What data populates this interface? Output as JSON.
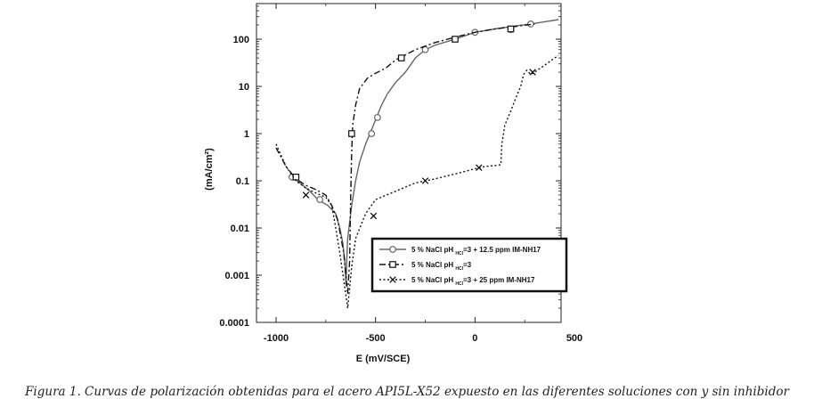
{
  "chart_data": {
    "type": "line",
    "title": "",
    "xlabel": "E (mV/SCE)",
    "ylabel": "(mA/cm²)",
    "y_scale": "log",
    "xlim": [
      -1100,
      500
    ],
    "ylim": [
      0.0001,
      700
    ],
    "x_ticks": [
      -1000,
      -500,
      0,
      500
    ],
    "x_tick_labels": [
      "-1000",
      "-500",
      "0",
      "500"
    ],
    "y_ticks": [
      100,
      10,
      1,
      0.1,
      0.01,
      0.001,
      0.0001
    ],
    "y_tick_labels": [
      "100",
      "10",
      "1",
      "0.1",
      "0.01",
      "0.001",
      "0.0001"
    ],
    "grid": false,
    "legend_position": "bottom-right",
    "legend": [
      {
        "prefix": "5 % NaCl pH",
        "sub": "HCl",
        "suffix": "=3 + 12.5 ppm IM-NH17",
        "marker": "circle",
        "dash": "solid",
        "color": "#666666"
      },
      {
        "prefix": "5 % NaCl pH",
        "sub": "HCl",
        "suffix": "=3",
        "marker": "square",
        "dash": "dashdot",
        "color": "#111111"
      },
      {
        "prefix": "5 % NaCl pH",
        "sub": "HCl",
        "suffix": "=3 + 25 ppm IM-NH17",
        "marker": "x",
        "dash": "dotted",
        "color": "#111111"
      }
    ],
    "series": [
      {
        "x": [
          -920,
          -880,
          -830,
          -790,
          -740,
          -700,
          -680,
          -665,
          -655,
          -648,
          -645,
          -640,
          -620,
          -600,
          -580,
          -550,
          -520,
          -490,
          -470,
          -440,
          -400,
          -350,
          -320,
          -300,
          -250,
          -200,
          -100,
          0,
          100,
          200,
          280,
          340,
          420
        ],
        "y": [
          0.12,
          0.09,
          0.06,
          0.04,
          0.03,
          0.02,
          0.01,
          0.005,
          0.002,
          0.0006,
          0.002,
          0.006,
          0.03,
          0.1,
          0.25,
          0.6,
          1.2,
          2.5,
          4,
          7,
          12,
          20,
          30,
          40,
          60,
          75,
          100,
          140,
          165,
          190,
          210,
          230,
          260
        ],
        "markers": [
          [
            -920,
            0.12
          ],
          [
            -780,
            0.04
          ],
          [
            -520,
            1.0
          ],
          [
            -490,
            2.2
          ],
          [
            -250,
            60
          ],
          [
            0,
            140
          ],
          [
            180,
            160
          ],
          [
            280,
            210
          ]
        ]
      },
      {
        "x": [
          -1000,
          -950,
          -900,
          -850,
          -800,
          -750,
          -720,
          -690,
          -660,
          -640,
          -630,
          -625,
          -620,
          -615,
          -600,
          -580,
          -540,
          -500,
          -450,
          -400,
          -300,
          -200,
          -100,
          0,
          100,
          200,
          300
        ],
        "y": [
          0.5,
          0.2,
          0.11,
          0.08,
          0.065,
          0.05,
          0.03,
          0.015,
          0.003,
          0.0004,
          0.002,
          0.05,
          0.4,
          1.5,
          4,
          9,
          15,
          19,
          24,
          36,
          60,
          85,
          110,
          140,
          165,
          185,
          210
        ],
        "markers": [
          [
            -900,
            0.12
          ],
          [
            -620,
            1.0
          ],
          [
            -370,
            40
          ],
          [
            -100,
            100
          ],
          [
            180,
            165
          ]
        ]
      },
      {
        "x": [
          -1000,
          -950,
          -900,
          -850,
          -800,
          -750,
          -720,
          -700,
          -680,
          -660,
          -640,
          -620,
          -600,
          -550,
          -500,
          -400,
          -300,
          -200,
          -100,
          0,
          50,
          100,
          130,
          135,
          150,
          180,
          200,
          220,
          230,
          245,
          260,
          280,
          300,
          350,
          400,
          420
        ],
        "y": [
          0.6,
          0.2,
          0.1,
          0.07,
          0.055,
          0.045,
          0.03,
          0.01,
          0.003,
          0.0008,
          0.0002,
          0.0015,
          0.006,
          0.02,
          0.04,
          0.06,
          0.09,
          0.11,
          0.14,
          0.18,
          0.2,
          0.21,
          0.22,
          0.6,
          1.5,
          3,
          5,
          8,
          10,
          18,
          22,
          18,
          20,
          28,
          40,
          45
        ],
        "markers": [
          [
            -850,
            0.05
          ],
          [
            -510,
            0.018
          ],
          [
            -250,
            0.1
          ],
          [
            20,
            0.19
          ],
          [
            290,
            20
          ]
        ]
      }
    ]
  },
  "caption": "Figura 1. Curvas de polarización obtenidas para el acero API5L-X52 expuesto en las diferentes soluciones con y sin inhibidor"
}
